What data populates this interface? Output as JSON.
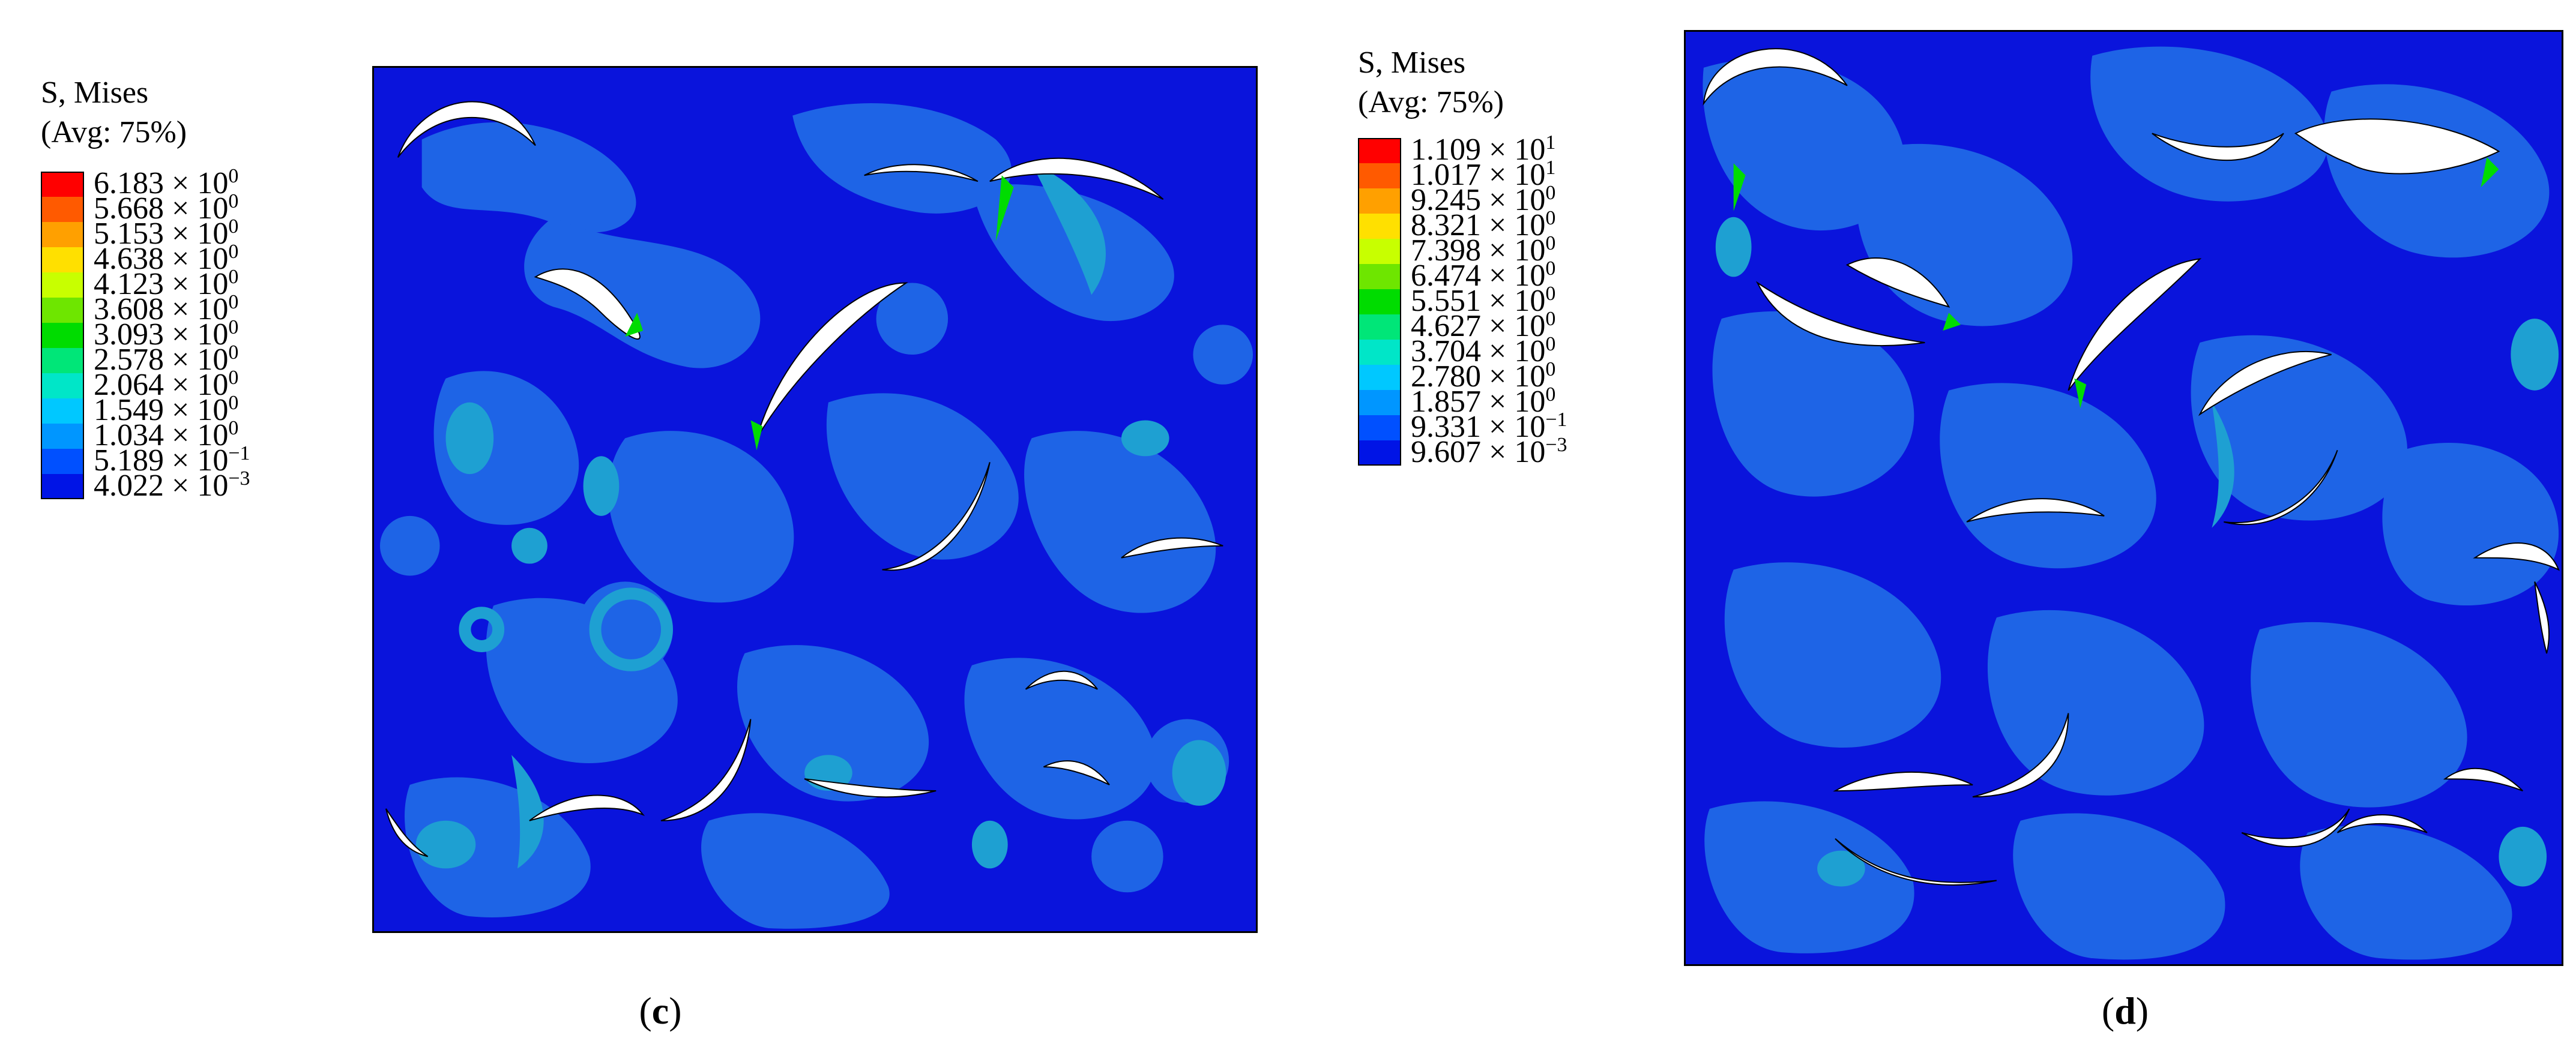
{
  "panels": [
    {
      "id": "c",
      "caption_letter": "c",
      "legend": {
        "title_line1": "S, Mises",
        "title_line2": "(Avg: 75%)",
        "entries": [
          {
            "mantissa": "6.183",
            "exponent": "0",
            "color": "#ff0000"
          },
          {
            "mantissa": "5.668",
            "exponent": "0",
            "color": "#ff5a00"
          },
          {
            "mantissa": "5.153",
            "exponent": "0",
            "color": "#ffa000"
          },
          {
            "mantissa": "4.638",
            "exponent": "0",
            "color": "#ffe000"
          },
          {
            "mantissa": "4.123",
            "exponent": "0",
            "color": "#c8ff00"
          },
          {
            "mantissa": "3.608",
            "exponent": "0",
            "color": "#6ee600"
          },
          {
            "mantissa": "3.093",
            "exponent": "0",
            "color": "#00dc00"
          },
          {
            "mantissa": "2.578",
            "exponent": "0",
            "color": "#00e678"
          },
          {
            "mantissa": "2.064",
            "exponent": "0",
            "color": "#00e6c8"
          },
          {
            "mantissa": "1.549",
            "exponent": "0",
            "color": "#00c8ff"
          },
          {
            "mantissa": "1.034",
            "exponent": "0",
            "color": "#0096ff"
          },
          {
            "mantissa": "5.189",
            "exponent": "−1",
            "color": "#0050ff"
          },
          {
            "mantissa": "4.022",
            "exponent": "−3",
            "color": "#0014e6"
          }
        ]
      }
    },
    {
      "id": "d",
      "caption_letter": "d",
      "legend": {
        "title_line1": "S, Mises",
        "title_line2": "(Avg: 75%)",
        "entries": [
          {
            "mantissa": "1.109",
            "exponent": "1",
            "color": "#ff0000"
          },
          {
            "mantissa": "1.017",
            "exponent": "1",
            "color": "#ff5a00"
          },
          {
            "mantissa": "9.245",
            "exponent": "0",
            "color": "#ffa000"
          },
          {
            "mantissa": "8.321",
            "exponent": "0",
            "color": "#ffe000"
          },
          {
            "mantissa": "7.398",
            "exponent": "0",
            "color": "#c8ff00"
          },
          {
            "mantissa": "6.474",
            "exponent": "0",
            "color": "#6ee600"
          },
          {
            "mantissa": "5.551",
            "exponent": "0",
            "color": "#00dc00"
          },
          {
            "mantissa": "4.627",
            "exponent": "0",
            "color": "#00e678"
          },
          {
            "mantissa": "3.704",
            "exponent": "0",
            "color": "#00e6c8"
          },
          {
            "mantissa": "2.780",
            "exponent": "0",
            "color": "#00c8ff"
          },
          {
            "mantissa": "1.857",
            "exponent": "0",
            "color": "#0096ff"
          },
          {
            "mantissa": "9.331",
            "exponent": "−1",
            "color": "#0050ff"
          },
          {
            "mantissa": "9.607",
            "exponent": "−3",
            "color": "#0014e6"
          }
        ]
      }
    }
  ],
  "colors": {
    "background_stress": "#0a14dc",
    "low_stress": "#1e64e6",
    "medium_stress": "#1ea0d2",
    "pore": "#ffffff"
  }
}
